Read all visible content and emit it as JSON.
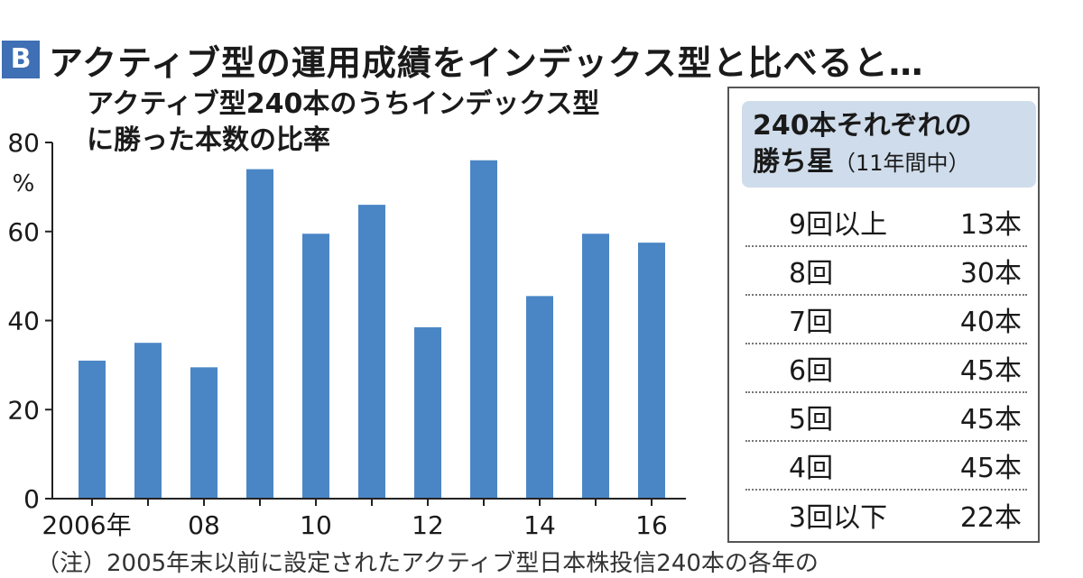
{
  "header": {
    "badge": "B",
    "title": "アクティブ型の運用成績をインデックス型と比べると…"
  },
  "chart_data": {
    "type": "bar",
    "title_line1": "アクティブ型240本のうちインデックス型",
    "title_line2": "に勝った本数の比率",
    "unit": "%",
    "ylim": [
      0,
      80
    ],
    "y_ticks": [
      "0",
      "20",
      "40",
      "60",
      "80"
    ],
    "years": [
      2006,
      2007,
      2008,
      2009,
      2010,
      2011,
      2012,
      2013,
      2014,
      2015,
      2016
    ],
    "values": [
      31,
      35,
      29.5,
      74,
      59.5,
      66,
      38.5,
      76,
      45.5,
      59.5,
      57.5
    ],
    "x_tick_labels": [
      {
        "index": 0,
        "label": "2006年"
      },
      {
        "index": 2,
        "label": "08"
      },
      {
        "index": 4,
        "label": "10"
      },
      {
        "index": 6,
        "label": "12"
      },
      {
        "index": 8,
        "label": "14"
      },
      {
        "index": 10,
        "label": "16"
      }
    ],
    "bar_color": "#4a86c5"
  },
  "panel": {
    "title_line1": "240本それぞれの",
    "title_line2_main": "勝ち星",
    "title_line2_sub": "（11年間中）",
    "rows": [
      {
        "label": "9回以上",
        "value": "13本"
      },
      {
        "label": "8回",
        "value": "30本"
      },
      {
        "label": "7回",
        "value": "40本"
      },
      {
        "label": "6回",
        "value": "45本"
      },
      {
        "label": "5回",
        "value": "45本"
      },
      {
        "label": "4回",
        "value": "45本"
      },
      {
        "label": "3回以下",
        "value": "22本"
      }
    ]
  },
  "footnote": "（注）2005年末以前に設定されたアクティブ型日本株投信240本の各年の"
}
